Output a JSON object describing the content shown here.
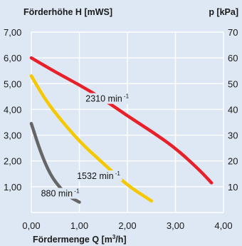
{
  "chart_data": {
    "type": "line",
    "title": "",
    "ylabel": "Förderhöhe H [mWS]",
    "ylabel_right": "p [kPa]",
    "xlabel_prefix": "Fördermenge Q [m",
    "xlabel_sup": "3",
    "xlabel_suffix": "/h]",
    "xlim": [
      0,
      4
    ],
    "ylim": [
      0,
      7
    ],
    "ylim_right": [
      0,
      70
    ],
    "grid": true,
    "x_ticks": [
      "0,00",
      "1,00",
      "2,00",
      "3,00",
      "4,00"
    ],
    "y_ticks_left": [
      "1,00",
      "2,00",
      "3,00",
      "4,00",
      "5,00",
      "6,00",
      "7,00"
    ],
    "y_ticks_right": [
      "10",
      "20",
      "30",
      "40",
      "50",
      "60",
      "70"
    ],
    "series": [
      {
        "name": "2310 min",
        "name_sup": "-1",
        "color": "#e8202a",
        "x": [
          0.0,
          0.5,
          1.0,
          1.5,
          2.0,
          2.5,
          3.0,
          3.5,
          3.75
        ],
        "y": [
          6.0,
          5.45,
          4.95,
          4.4,
          3.75,
          3.15,
          2.5,
          1.65,
          1.15
        ]
      },
      {
        "name": "1532 min",
        "name_sup": "-1",
        "color": "#f5c800",
        "x": [
          0.0,
          0.25,
          0.5,
          1.0,
          1.5,
          2.0,
          2.5
        ],
        "y": [
          5.3,
          4.5,
          3.85,
          2.75,
          1.9,
          1.05,
          0.45
        ]
      },
      {
        "name": "880 min",
        "name_sup": "-1",
        "color": "#666666",
        "x": [
          0.0,
          0.2,
          0.4,
          0.6,
          0.8,
          1.0
        ],
        "y": [
          3.45,
          2.3,
          1.45,
          0.95,
          0.6,
          0.4
        ]
      }
    ]
  }
}
